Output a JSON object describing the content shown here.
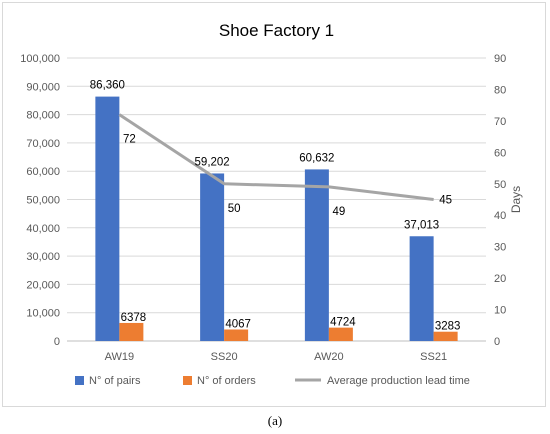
{
  "chart_data": {
    "type": "bar",
    "title": "Shoe Factory 1",
    "categories": [
      "AW19",
      "SS20",
      "AW20",
      "SS21"
    ],
    "series": [
      {
        "name": "N° of pairs",
        "kind": "bar",
        "axis": "left",
        "color": "#4472C4",
        "values": [
          86360,
          59202,
          60632,
          37013
        ],
        "labels": [
          "86,360",
          "59,202",
          "60,632",
          "37,013"
        ]
      },
      {
        "name": "N° of orders",
        "kind": "bar",
        "axis": "left",
        "color": "#ED7D31",
        "values": [
          6378,
          4067,
          4724,
          3283
        ],
        "labels": [
          "6378",
          "4067",
          "4724",
          "3283"
        ]
      },
      {
        "name": "Average production lead time",
        "kind": "line",
        "axis": "right",
        "color": "#A5A5A5",
        "values": [
          72,
          50,
          49,
          45
        ],
        "labels": [
          "72",
          "50",
          "49",
          "45"
        ]
      }
    ],
    "y_left": {
      "min": 0,
      "max": 100000,
      "ticks": [
        "0",
        "10,000",
        "20,000",
        "30,000",
        "40,000",
        "50,000",
        "60,000",
        "70,000",
        "80,000",
        "90,000",
        "100,000"
      ]
    },
    "y_right": {
      "min": 0,
      "max": 90,
      "label": "Days",
      "ticks": [
        "0",
        "10",
        "20",
        "30",
        "40",
        "50",
        "60",
        "70",
        "80",
        "90"
      ]
    },
    "xlabel": "",
    "ylabel": "",
    "grid": true,
    "legend": "bottom"
  },
  "caption": "(a)"
}
